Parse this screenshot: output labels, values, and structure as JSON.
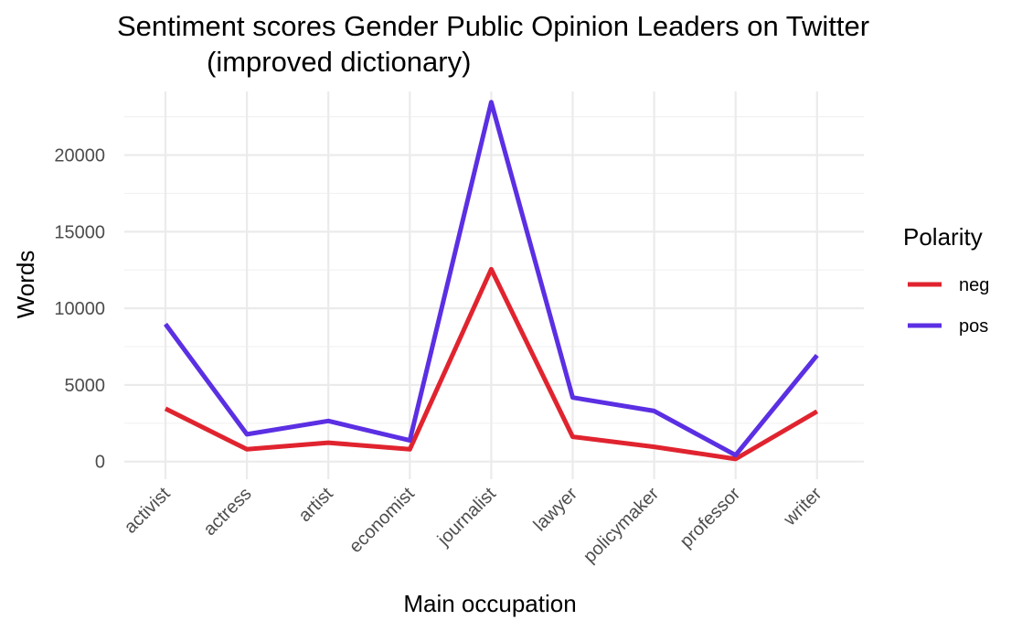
{
  "chart_data": {
    "type": "line",
    "title_lines": [
      "Sentiment scores Gender Public Opinion Leaders on Twitter",
      "(improved dictionary)"
    ],
    "xlabel": "Main occupation",
    "ylabel": "Words",
    "categories": [
      "activist",
      "actress",
      "artist",
      "economist",
      "journalist",
      "lawyer",
      "policymaker",
      "professor",
      "writer"
    ],
    "y_ticks": [
      0,
      5000,
      10000,
      15000,
      20000
    ],
    "ylim": [
      -1150,
      24150
    ],
    "grid": true,
    "legend": {
      "title": "Polarity",
      "position": "right"
    },
    "series": [
      {
        "name": "neg",
        "color": "#e0242f",
        "values": [
          3450,
          800,
          1230,
          800,
          12550,
          1620,
          960,
          170,
          3270
        ]
      },
      {
        "name": "pos",
        "color": "#5b2fe3",
        "values": [
          8970,
          1780,
          2650,
          1380,
          23450,
          4180,
          3300,
          420,
          6930
        ]
      }
    ]
  }
}
